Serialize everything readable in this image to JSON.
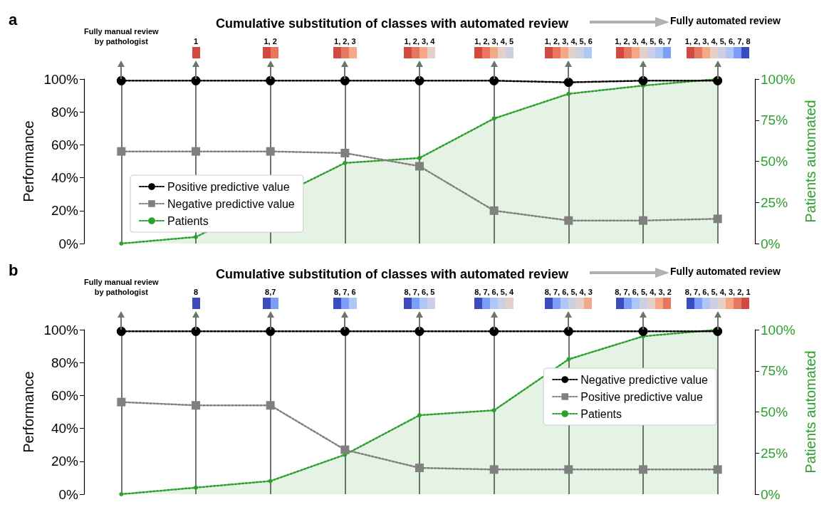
{
  "chart_data": [
    {
      "type": "line",
      "title": "Cumulative substitution of classes with automated review",
      "annotations": [
        "a",
        "Fully automated review"
      ],
      "categories": [
        "Fully manual review\nby pathologist",
        "1",
        "1, 2",
        "1, 2, 3",
        "1, 2, 3, 4",
        "1, 2, 3, 4, 5",
        "1, 2, 3, 4, 5, 6",
        "1, 2, 3, 4, 5, 6, 7",
        "1, 2, 3, 4, 5, 6, 7, 8"
      ],
      "ylabel": "Performance",
      "y2label": "Patients automated",
      "ylim": [
        0,
        100
      ],
      "yticks": [
        {
          "value": 0,
          "label": "0%"
        },
        {
          "value": 20,
          "label": "20%"
        },
        {
          "value": 40,
          "label": "40%"
        },
        {
          "value": 60,
          "label": "60%"
        },
        {
          "value": 80,
          "label": "80%"
        },
        {
          "value": 100,
          "label": "100%"
        }
      ],
      "y2lim": [
        0,
        100
      ],
      "y2ticks": [
        {
          "value": 0,
          "label": "0%"
        },
        {
          "value": 25,
          "label": "25%"
        },
        {
          "value": 50,
          "label": "50%"
        },
        {
          "value": 75,
          "label": "75%"
        },
        {
          "value": 100,
          "label": "100%"
        }
      ],
      "grid": "x",
      "legend": "bottom left",
      "line_style": "dotted",
      "series": [
        {
          "name": "Positive predictive value",
          "color": "#000000",
          "marker": "circle",
          "values": [
            99,
            99,
            99,
            99,
            99,
            99,
            98,
            99,
            99
          ]
        },
        {
          "name": "Negative predictive value",
          "color": "#808080",
          "marker": "square",
          "values": [
            56,
            56,
            56,
            55,
            47,
            20,
            14,
            14,
            15
          ]
        },
        {
          "name": "Patients",
          "type": "area",
          "axis": "y2",
          "color": "#2ca02c",
          "marker": "circle",
          "values": [
            0,
            4,
            null,
            49,
            52,
            76,
            91,
            96,
            100
          ]
        }
      ]
    },
    {
      "type": "line",
      "title": "Cumulative substitution of classes with automated review",
      "annotations": [
        "b",
        "Fully automated review"
      ],
      "categories": [
        "Fully manual review\nby pathologist",
        "8",
        "8,7",
        "8, 7, 6",
        "8, 7, 6, 5",
        "8, 7, 6, 5, 4",
        "8, 7, 6, 5, 4, 3",
        "8, 7, 6, 5, 4, 3, 2",
        "8, 7, 6, 5, 4, 3, 2, 1"
      ],
      "ylabel": "Performance",
      "y2label": "Patients automated",
      "ylim": [
        0,
        100
      ],
      "yticks": [
        {
          "value": 0,
          "label": "0%"
        },
        {
          "value": 20,
          "label": "20%"
        },
        {
          "value": 40,
          "label": "40%"
        },
        {
          "value": 60,
          "label": "60%"
        },
        {
          "value": 80,
          "label": "80%"
        },
        {
          "value": 100,
          "label": "100%"
        }
      ],
      "y2lim": [
        0,
        100
      ],
      "y2ticks": [
        {
          "value": 0,
          "label": "0%"
        },
        {
          "value": 25,
          "label": "25%"
        },
        {
          "value": 50,
          "label": "50%"
        },
        {
          "value": 75,
          "label": "75%"
        },
        {
          "value": 100,
          "label": "100%"
        }
      ],
      "grid": "x",
      "legend": "right",
      "line_style": "dotted",
      "series": [
        {
          "name": "Negative predictive value",
          "color": "#000000",
          "marker": "circle",
          "values": [
            99,
            99,
            99,
            99,
            99,
            99,
            99,
            99,
            99
          ]
        },
        {
          "name": "Positive predictive value",
          "color": "#808080",
          "marker": "square",
          "values": [
            56,
            54,
            54,
            27,
            16,
            15,
            15,
            15,
            15
          ]
        },
        {
          "name": "Patients",
          "type": "area",
          "axis": "y2",
          "color": "#2ca02c",
          "marker": "circle",
          "values": [
            0,
            4,
            8,
            24,
            48,
            51,
            82,
            96,
            100
          ]
        }
      ]
    }
  ]
}
